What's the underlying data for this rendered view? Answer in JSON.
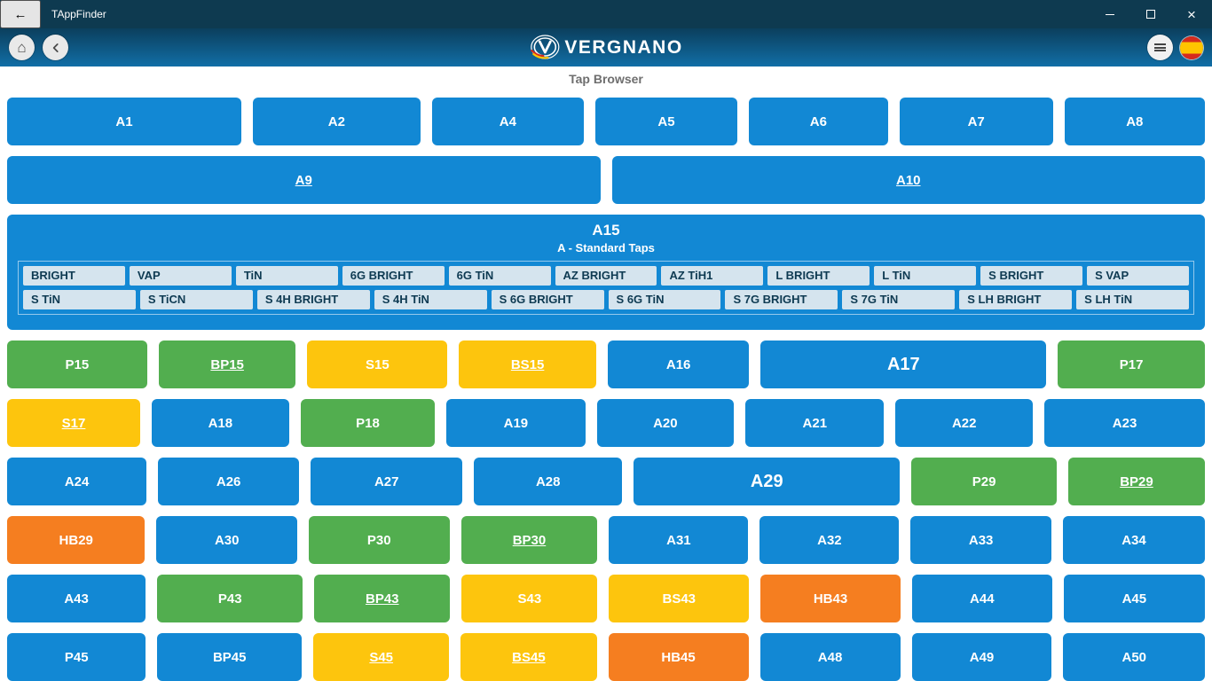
{
  "window": {
    "title": "TAppFinder"
  },
  "icons": {
    "back_arrow": "←",
    "close": "×",
    "home": "⌂"
  },
  "header": {
    "brand": "VERGNANO",
    "page_title": "Tap Browser"
  },
  "colors": {
    "blue": "#1288d4",
    "green": "#52ae4f",
    "yellow": "#fdc50d",
    "orange": "#f57e20",
    "titlebar": "#0e3a50",
    "header-top": "#0b3f5d",
    "header-bottom": "#116ea6"
  },
  "a15": {
    "title": "A15",
    "subtitle": "A - Standard Taps",
    "chip_rows": [
      [
        "BRIGHT",
        "VAP",
        "TiN",
        "6G BRIGHT",
        "6G TiN",
        "AZ BRIGHT",
        "AZ TiH1",
        "L BRIGHT",
        "L TiN",
        "S BRIGHT",
        "S VAP"
      ],
      [
        "S TiN",
        "S TiCN",
        "S 4H BRIGHT",
        "S 4H TiN",
        "S 6G BRIGHT",
        "S 6G TiN",
        "S 7G BRIGHT",
        "S 7G TiN",
        "S LH BRIGHT",
        "S LH TiN"
      ]
    ]
  },
  "grid": {
    "top_rows": [
      [
        {
          "label": "A1",
          "color": "blue",
          "flex": 1.65
        },
        {
          "label": "A2",
          "color": "blue",
          "flex": 1.18
        },
        {
          "label": "A4",
          "color": "blue",
          "flex": 1.07
        },
        {
          "label": "A5",
          "color": "blue",
          "flex": 1.0
        },
        {
          "label": "A6",
          "color": "blue",
          "flex": 0.98
        },
        {
          "label": "A7",
          "color": "blue",
          "flex": 1.08
        },
        {
          "label": "A8",
          "color": "blue",
          "flex": 0.99
        }
      ],
      [
        {
          "label": "A9",
          "color": "blue",
          "flex": 1,
          "underline": true
        },
        {
          "label": "A10",
          "color": "blue",
          "flex": 1,
          "underline": true
        }
      ]
    ],
    "bottom_rows": [
      [
        {
          "label": "P15",
          "color": "green",
          "flex": 1
        },
        {
          "label": "BP15",
          "color": "green",
          "flex": 0.98,
          "underline": true
        },
        {
          "label": "S15",
          "color": "yellow",
          "flex": 1
        },
        {
          "label": "BS15",
          "color": "yellow",
          "flex": 0.98,
          "underline": true
        },
        {
          "label": "A16",
          "color": "blue",
          "flex": 1.01
        },
        {
          "label": "A17",
          "color": "blue",
          "flex": 2.04,
          "big": true
        },
        {
          "label": "P17",
          "color": "green",
          "flex": 1.05
        }
      ],
      [
        {
          "label": "S17",
          "color": "yellow",
          "flex": 0.97,
          "underline": true
        },
        {
          "label": "A18",
          "color": "blue",
          "flex": 1
        },
        {
          "label": "P18",
          "color": "green",
          "flex": 0.98
        },
        {
          "label": "A19",
          "color": "blue",
          "flex": 1.01
        },
        {
          "label": "A20",
          "color": "blue",
          "flex": 1
        },
        {
          "label": "A21",
          "color": "blue",
          "flex": 1.01
        },
        {
          "label": "A22",
          "color": "blue",
          "flex": 1
        },
        {
          "label": "A23",
          "color": "blue",
          "flex": 1.17
        }
      ],
      [
        {
          "label": "A24",
          "color": "blue",
          "flex": 1
        },
        {
          "label": "A26",
          "color": "blue",
          "flex": 1.01
        },
        {
          "label": "A27",
          "color": "blue",
          "flex": 1.09
        },
        {
          "label": "A28",
          "color": "blue",
          "flex": 1.06
        },
        {
          "label": "A29",
          "color": "blue",
          "flex": 1.91,
          "big": true
        },
        {
          "label": "P29",
          "color": "green",
          "flex": 1.04
        },
        {
          "label": "BP29",
          "color": "green",
          "flex": 0.98,
          "underline": true
        }
      ],
      [
        {
          "label": "HB29",
          "color": "orange",
          "flex": 1
        },
        {
          "label": "A30",
          "color": "blue",
          "flex": 1.02
        },
        {
          "label": "P30",
          "color": "green",
          "flex": 1.02
        },
        {
          "label": "BP30",
          "color": "green",
          "flex": 0.99,
          "underline": true
        },
        {
          "label": "A31",
          "color": "blue",
          "flex": 1.01
        },
        {
          "label": "A32",
          "color": "blue",
          "flex": 1.01
        },
        {
          "label": "A33",
          "color": "blue",
          "flex": 1.02
        },
        {
          "label": "A34",
          "color": "blue",
          "flex": 1.03
        }
      ],
      [
        {
          "label": "A43",
          "color": "blue",
          "flex": 1
        },
        {
          "label": "P43",
          "color": "green",
          "flex": 1.05
        },
        {
          "label": "BP43",
          "color": "green",
          "flex": 0.98,
          "underline": true
        },
        {
          "label": "S43",
          "color": "yellow",
          "flex": 0.98
        },
        {
          "label": "BS43",
          "color": "yellow",
          "flex": 1.01
        },
        {
          "label": "HB43",
          "color": "orange",
          "flex": 1.01
        },
        {
          "label": "A44",
          "color": "blue",
          "flex": 1.01
        },
        {
          "label": "A45",
          "color": "blue",
          "flex": 1.02
        }
      ],
      [
        {
          "label": "P45",
          "color": "blue",
          "flex": 1
        },
        {
          "label": "BP45",
          "color": "blue",
          "flex": 1.04
        },
        {
          "label": "S45",
          "color": "yellow",
          "flex": 0.98,
          "underline": true
        },
        {
          "label": "BS45",
          "color": "yellow",
          "flex": 0.98,
          "underline": true
        },
        {
          "label": "HB45",
          "color": "orange",
          "flex": 1.01
        },
        {
          "label": "A48",
          "color": "blue",
          "flex": 1.01
        },
        {
          "label": "A49",
          "color": "blue",
          "flex": 1.01
        },
        {
          "label": "A50",
          "color": "blue",
          "flex": 1.02
        }
      ]
    ]
  }
}
